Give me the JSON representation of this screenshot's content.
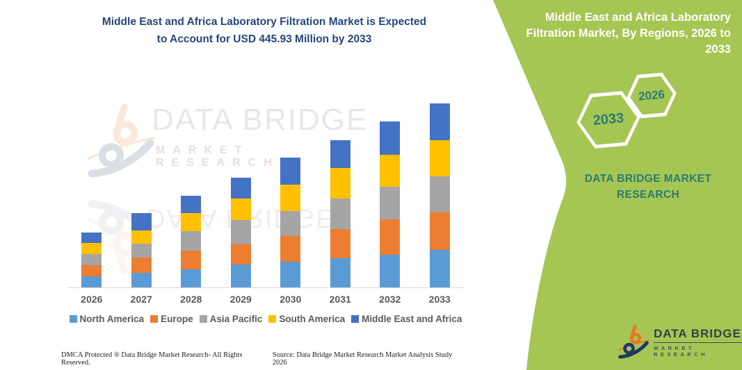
{
  "header": {
    "title_lines": [
      "Middle East and Africa Laboratory Filtration Market is Expected",
      "to Account for USD 445.93 Million by 2033"
    ],
    "title_color": "#254679"
  },
  "chart_data": {
    "type": "bar",
    "stacked": true,
    "title": "Middle East and Africa Laboratory Filtration Market is Expected to Account for USD 445.93 Million by 2033",
    "unit": "USD Million",
    "categories": [
      "2026",
      "2027",
      "2028",
      "2029",
      "2030",
      "2031",
      "2032",
      "2033"
    ],
    "series": [
      {
        "name": "North America",
        "color": "#5B9BD5",
        "values": [
          27.5,
          35.5,
          43.9,
          55.7,
          63.0,
          71.4,
          79.9,
          91.2
        ]
      },
      {
        "name": "Europe",
        "color": "#ED7D31",
        "values": [
          27.0,
          37.2,
          45.6,
          49.5,
          62.0,
          70.4,
          85.6,
          90.0
        ]
      },
      {
        "name": "Asia Pacific",
        "color": "#A5A5A5",
        "values": [
          26.5,
          33.8,
          47.3,
          57.4,
          60.3,
          73.1,
          77.7,
          87.3
        ]
      },
      {
        "name": "South America",
        "color": "#FFC000",
        "values": [
          26.3,
          32.1,
          43.9,
          52.4,
          64.7,
          74.3,
          77.7,
          88.3
        ]
      },
      {
        "name": "Middle East and Africa",
        "color": "#4472C4",
        "values": [
          26.0,
          42.2,
          42.2,
          51.9,
          64.7,
          67.6,
          81.1,
          89.13
        ]
      }
    ],
    "totals": [
      133.3,
      180.8,
      222.9,
      266.9,
      314.7,
      356.8,
      402.0,
      445.93
    ],
    "ylim": [
      0,
      445.93
    ],
    "grid": false,
    "legend_position": "bottom",
    "axis_line_color": "#d9d9d9",
    "tick_label_color": "#595959"
  },
  "side_panel": {
    "title_lines": [
      "Middle East and Africa Laboratory",
      "Filtration Market, By Regions, 2026 to",
      "2033"
    ],
    "hexagon_large_label": "2033",
    "hexagon_small_label": "2026",
    "brand_words": "DATA BRIDGE MARKET RESEARCH",
    "bg_color": "#A5C653",
    "accent_color": "#2A7B74"
  },
  "watermark": {
    "line1": "DATA BRIDGE",
    "line2": "MARKET RESEARCH"
  },
  "brand_logo": {
    "line1": "DATA BRIDGE",
    "line2": "MARKET RESEARCH",
    "orange": "#E87722",
    "navy": "#1F3864"
  },
  "footer": {
    "left": "DMCA Protected ® Data Bridge Market Research-  All Rights Reserved.",
    "right": "Source: Data Bridge Market Research  Market Analysis Study 2026"
  }
}
